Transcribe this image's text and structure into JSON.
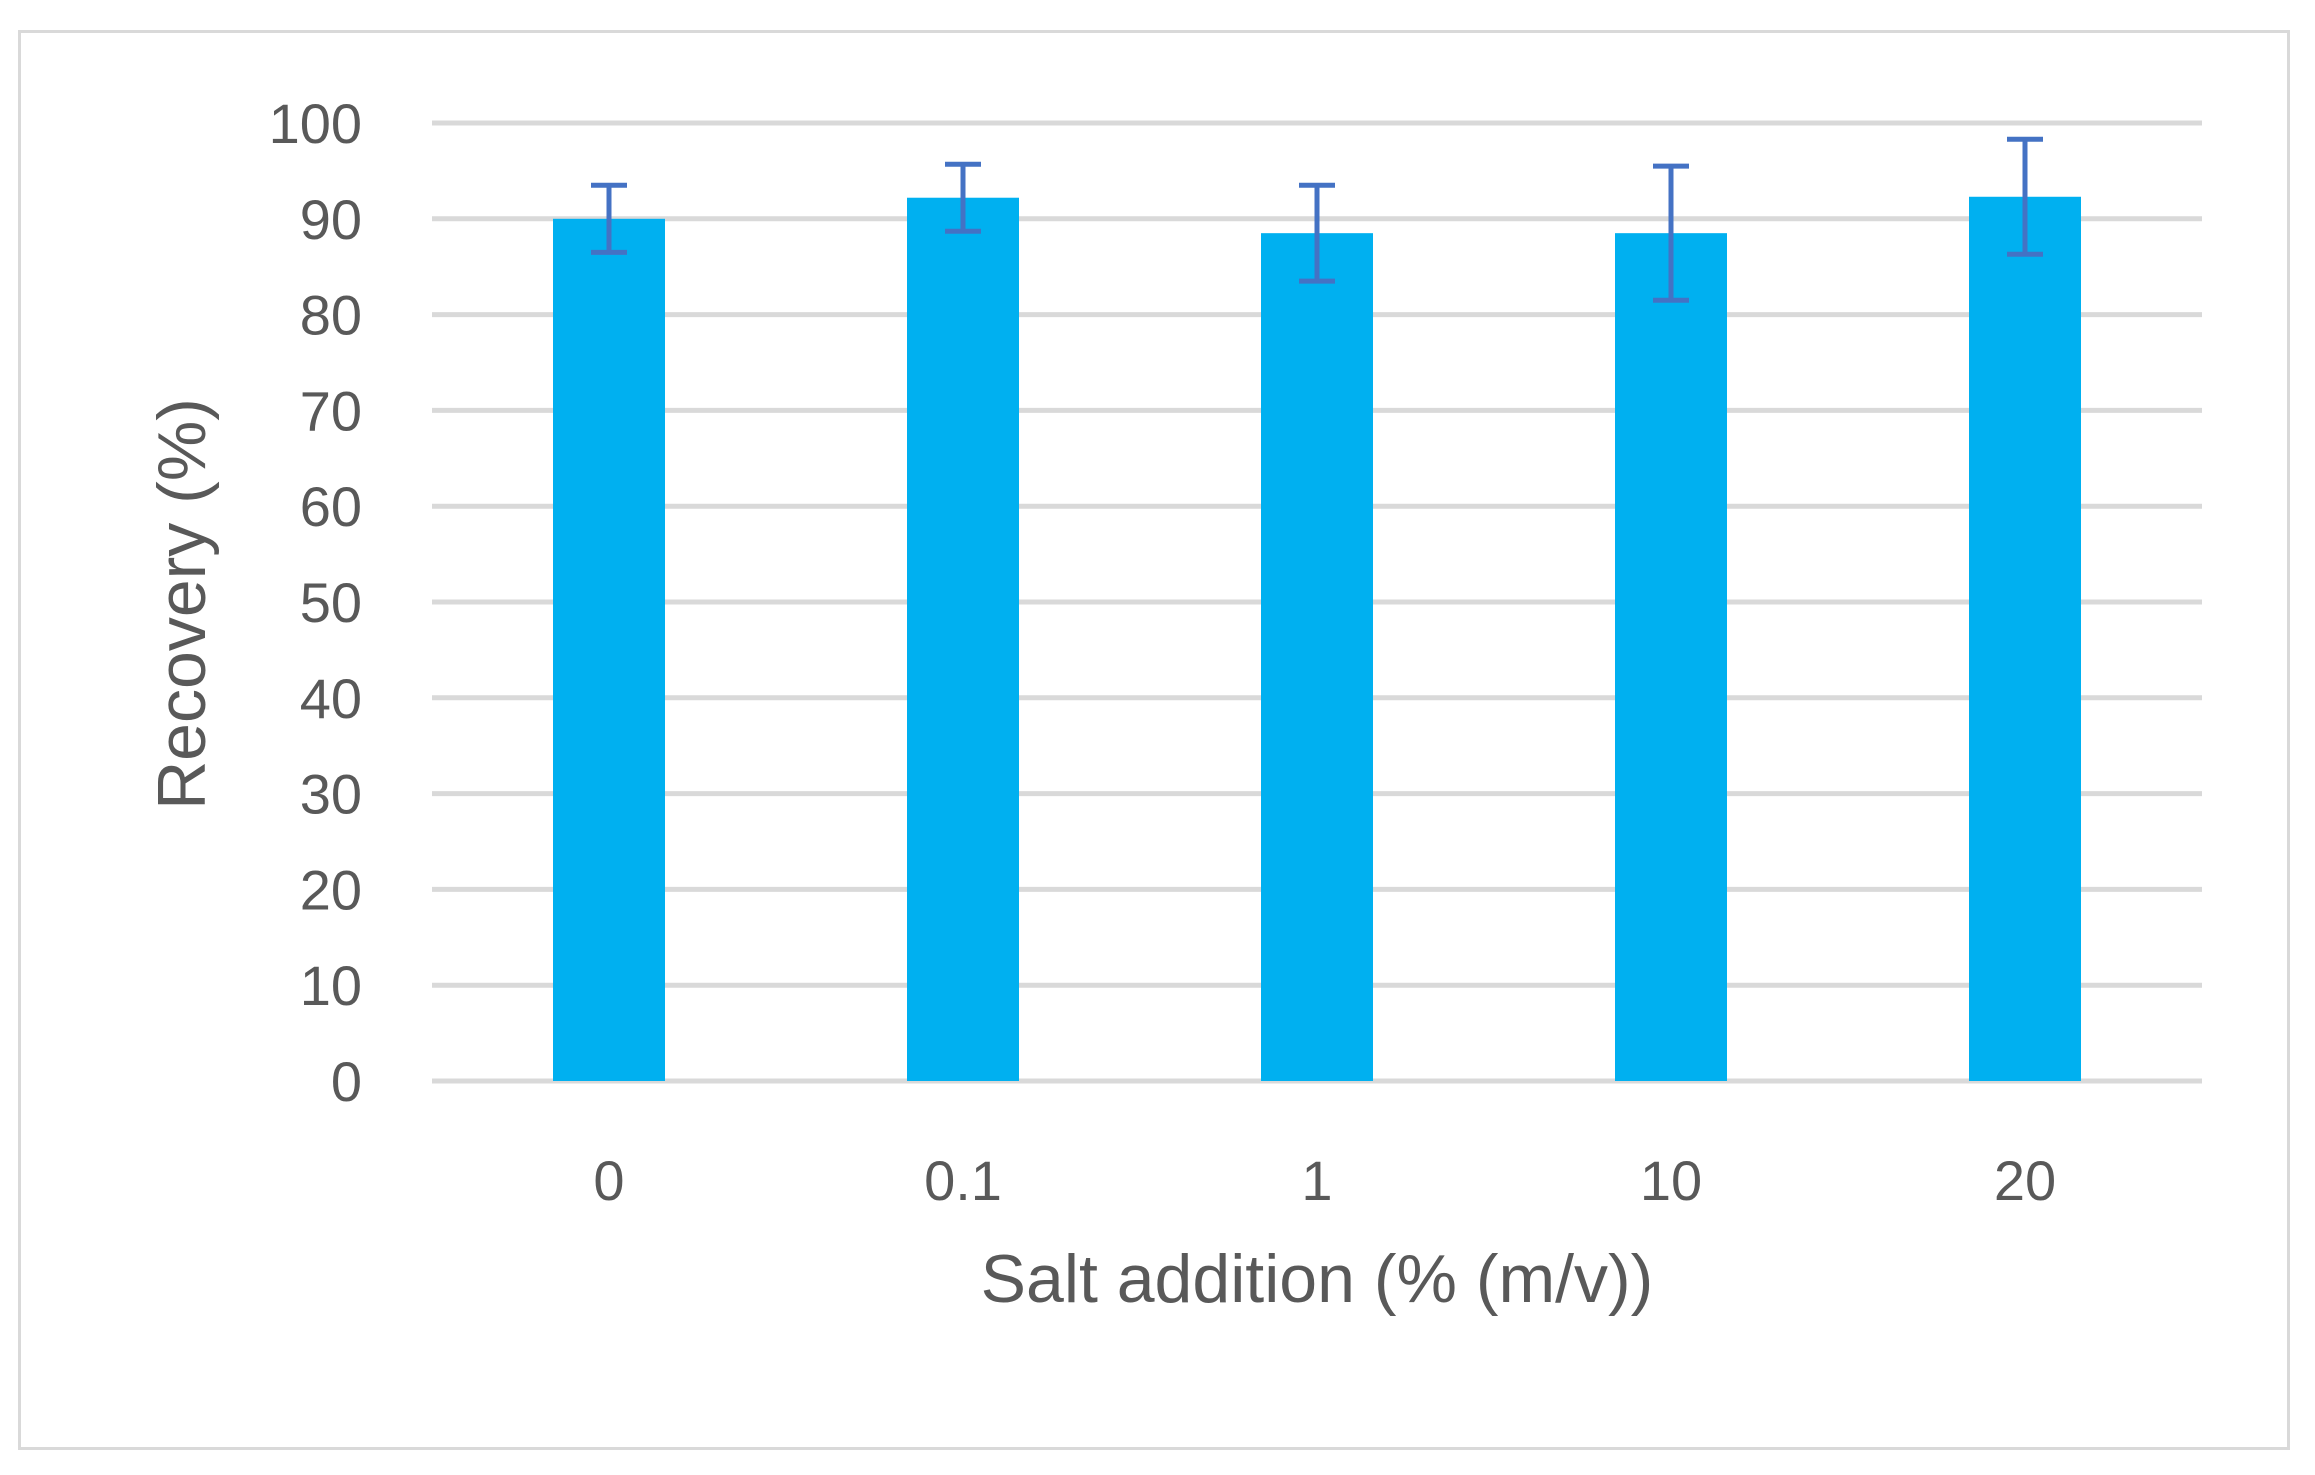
{
  "chart_data": {
    "type": "bar",
    "title": "",
    "xlabel": "Salt addition (% (m/v))",
    "ylabel": "Recovery (%)",
    "ylim": [
      0,
      100
    ],
    "yticks": [
      "0",
      "10",
      "20",
      "30",
      "40",
      "50",
      "60",
      "70",
      "80",
      "90",
      "100"
    ],
    "categories": [
      "0",
      "0.1",
      "1",
      "10",
      "20"
    ],
    "series": [
      {
        "values": [
          90.0,
          92.2,
          88.5,
          88.5,
          92.3
        ],
        "error": [
          3.5,
          3.5,
          5.0,
          7.0,
          6.0
        ]
      }
    ],
    "grid": "horizontal",
    "legend": "none",
    "colors": {
      "bar": "#00B0F0",
      "error_bar": "#4472C4",
      "grid": "#D9D9D9",
      "text": "#595959",
      "frame": "#D9D9D9"
    }
  }
}
